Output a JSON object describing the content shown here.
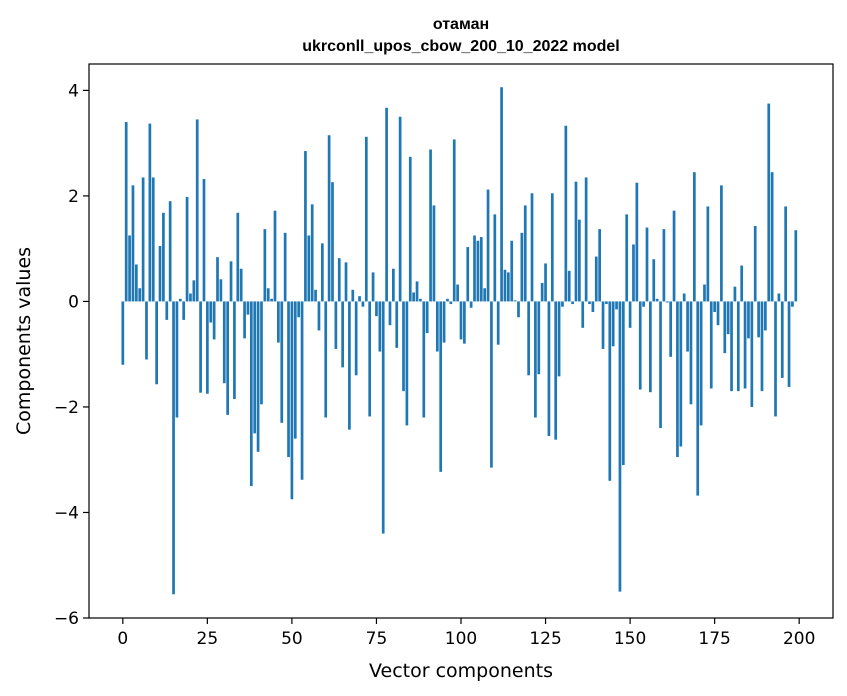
{
  "chart_data": {
    "type": "bar",
    "title": "отаман",
    "subtitle": "ukrconll_upos_cbow_200_10_2022 model",
    "xlabel": "Vector components",
    "ylabel": "Components values",
    "xlim": [
      -10,
      210
    ],
    "ylim": [
      -6,
      4.5
    ],
    "xticks": [
      0,
      25,
      50,
      75,
      100,
      125,
      150,
      175,
      200
    ],
    "yticks": [
      -6,
      -4,
      -2,
      0,
      2,
      4
    ],
    "xtick_labels": [
      "0",
      "25",
      "50",
      "75",
      "100",
      "125",
      "150",
      "175",
      "200"
    ],
    "ytick_labels": [
      "−6",
      "−4",
      "−2",
      "0",
      "2",
      "4"
    ],
    "grid": false,
    "bar_color": "#1f77b4",
    "values": [
      -1.2,
      3.4,
      1.25,
      2.2,
      0.7,
      0.25,
      2.35,
      -1.1,
      3.37,
      2.35,
      -1.57,
      1.05,
      1.68,
      -0.35,
      1.9,
      -5.55,
      -2.2,
      0.05,
      -0.35,
      1.98,
      0.15,
      0.4,
      3.45,
      -1.73,
      2.32,
      -1.75,
      -0.4,
      -0.72,
      0.84,
      0.42,
      -1.55,
      -2.15,
      0.76,
      -1.85,
      1.68,
      0.62,
      -0.7,
      -0.25,
      -3.5,
      -2.5,
      -2.85,
      -1.95,
      1.37,
      0.25,
      0.05,
      1.72,
      -0.78,
      -2.3,
      1.3,
      -2.95,
      -3.75,
      -2.6,
      -0.3,
      -3.38,
      2.85,
      1.25,
      1.84,
      0.22,
      -0.55,
      1.1,
      -2.2,
      3.15,
      2.26,
      -0.9,
      0.82,
      -1.25,
      0.74,
      -2.43,
      0.22,
      -1.4,
      0.1,
      -0.1,
      3.12,
      -2.18,
      0.55,
      -0.28,
      -0.95,
      -4.4,
      3.67,
      -0.45,
      0.62,
      -0.88,
      3.5,
      -1.7,
      -2.35,
      2.74,
      0.17,
      0.38,
      0.05,
      -2.2,
      -0.6,
      2.88,
      1.82,
      -0.95,
      -3.23,
      -0.78,
      0.05,
      -0.05,
      3.07,
      0.32,
      -0.72,
      -0.8,
      1.03,
      -0.12,
      1.25,
      1.15,
      1.22,
      0.25,
      2.12,
      -3.15,
      1.65,
      -0.82,
      4.06,
      0.6,
      0.55,
      1.15,
      0.02,
      -0.3,
      1.3,
      1.82,
      -1.4,
      2.05,
      -2.2,
      -1.38,
      0.35,
      0.72,
      -2.55,
      2.05,
      -2.62,
      -1.42,
      -0.1,
      3.33,
      0.58,
      -0.05,
      2.27,
      1.55,
      -0.5,
      2.35,
      -0.05,
      -0.2,
      0.85,
      1.37,
      -0.9,
      -0.05,
      -3.4,
      -0.85,
      -0.15,
      -5.5,
      -3.1,
      1.65,
      -0.5,
      1.08,
      2.25,
      -1.67,
      -0.1,
      1.4,
      -1.72,
      0.8,
      0.05,
      -2.4,
      1.37,
      -0.02,
      -1.05,
      1.72,
      -2.95,
      -2.75,
      0.15,
      -0.95,
      -1.95,
      2.45,
      -3.68,
      -2.35,
      0.32,
      1.8,
      -1.65,
      -0.2,
      -0.45,
      2.2,
      -0.98,
      -0.62,
      -1.7,
      0.28,
      -1.7,
      0.68,
      -1.65,
      -0.7,
      -2.0,
      1.43,
      -0.68,
      -1.7,
      -0.55,
      3.75,
      2.45,
      -2.18,
      0.15,
      -1.45,
      1.8,
      -1.62,
      -0.1,
      1.35
    ]
  }
}
